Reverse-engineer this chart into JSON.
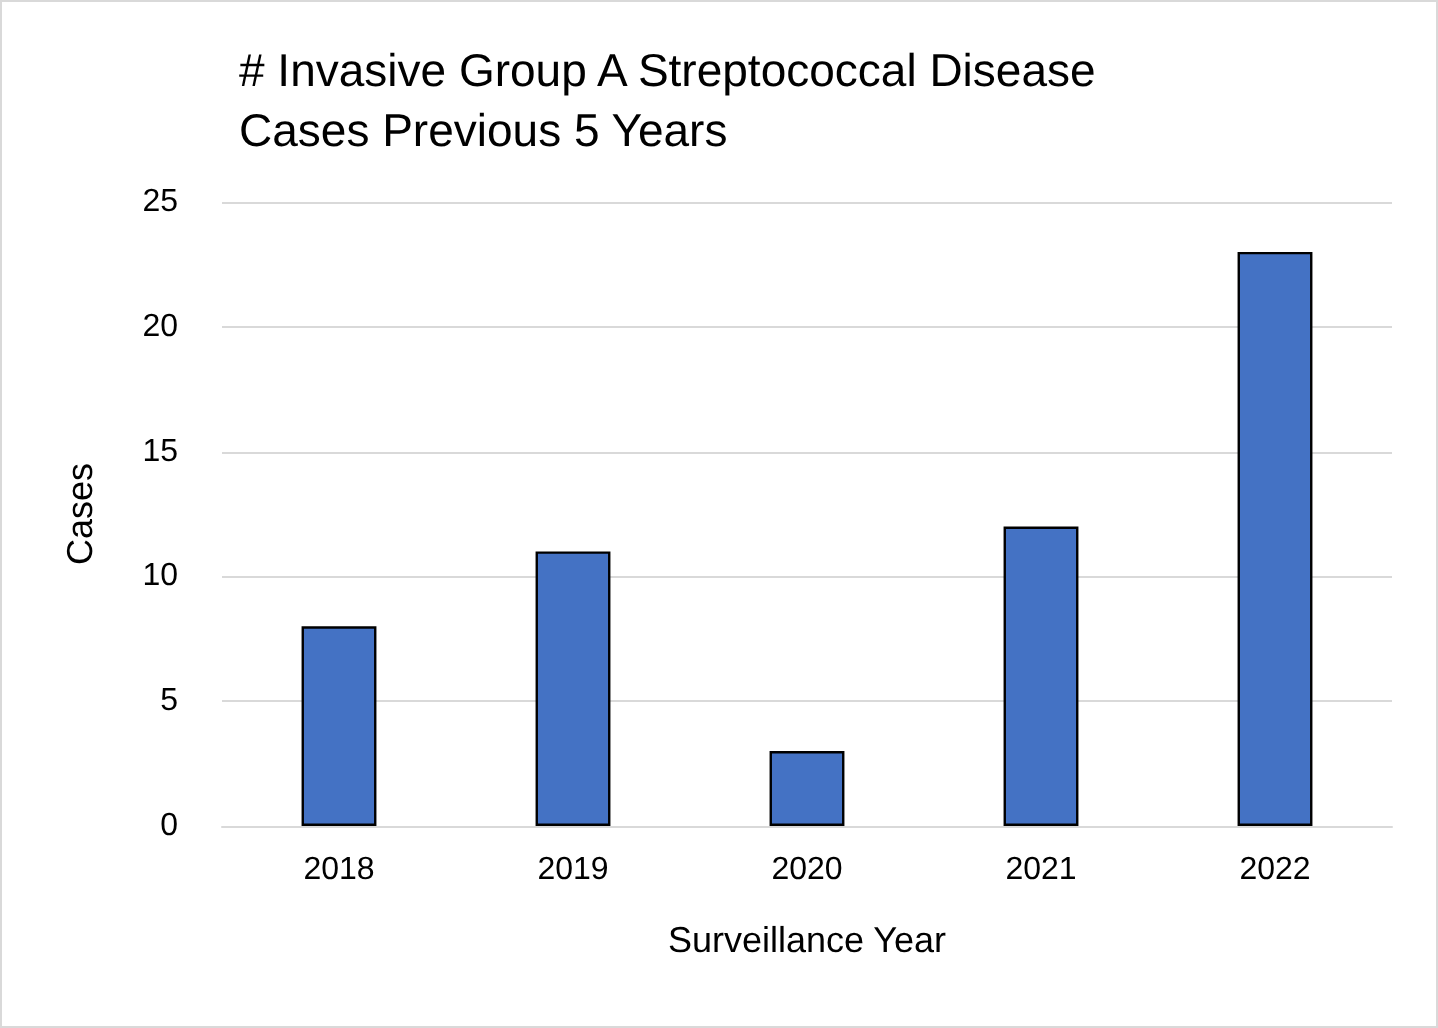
{
  "chart_data": {
    "type": "bar",
    "title": "# Invasive Group A Streptococcal Disease Cases Previous 5 Years",
    "xlabel": "Surveillance Year",
    "ylabel": "Cases",
    "categories": [
      "2018",
      "2019",
      "2020",
      "2021",
      "2022"
    ],
    "values": [
      8,
      11,
      3,
      12,
      23
    ],
    "color": "#4472c4",
    "ylim": [
      0,
      25
    ],
    "yticks": [
      0,
      5,
      10,
      15,
      20,
      25
    ],
    "grid": "y"
  }
}
